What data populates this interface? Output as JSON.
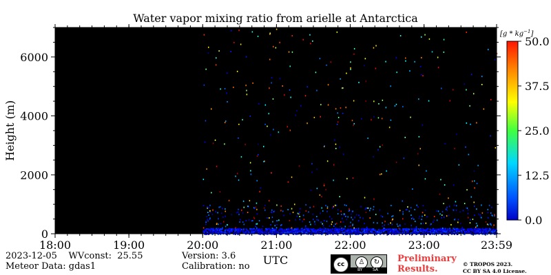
{
  "chart_data": {
    "type": "heatmap",
    "title": "Water vapor mixing ratio from arielle at Antarctica",
    "ylabel": "Height (m)",
    "xlabel": "UTC",
    "x_tick_labels": [
      "18:00",
      "19:00",
      "20:00",
      "21:00",
      "22:00",
      "23:00",
      "23:59"
    ],
    "x_ticks_hours": [
      18,
      19,
      20,
      21,
      22,
      23,
      23.983
    ],
    "xlim_hours": [
      18,
      23.983
    ],
    "y_ticks": [
      0,
      2000,
      4000,
      6000
    ],
    "ylim": [
      0,
      7000
    ],
    "colorbar": {
      "label": "[g * kg^-1]",
      "ticks": [
        0.0,
        12.5,
        25.0,
        37.5,
        50.0
      ],
      "tick_labels": [
        "0.0",
        "12.5",
        "25.0",
        "37.5",
        "50.0"
      ],
      "range": [
        0,
        50
      ],
      "colormap": "jet"
    },
    "background_color": "#000000",
    "data_start_hour": 20.0,
    "dense_layer_top_m": 200,
    "dense_layer_value": 5
  },
  "footer": {
    "date": "2023-12-05",
    "wvconst": "WVconst:  25.55",
    "meteor": "Meteor Data: gdas1",
    "version": "Version: 3.6",
    "calibration": "Calibration: no",
    "preliminary": "Preliminary",
    "results": "Results.",
    "copyright": "© TROPOS 2023.",
    "license": "CC BY SA 4.0 License."
  },
  "license_badge": {
    "cc": "cc",
    "by": "BY",
    "sa": "SA"
  }
}
